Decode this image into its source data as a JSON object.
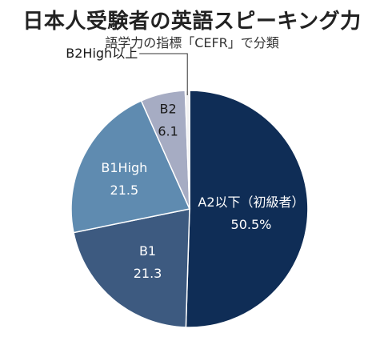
{
  "header": {
    "title": "日本人受験者の英語スピーキング力",
    "subtitle": "語学力の指標「CEFR」で分類"
  },
  "chart_data": {
    "type": "pie",
    "title": "日本人受験者の英語スピーキング力",
    "subtitle": "語学力の指標「CEFR」で分類",
    "start_angle": "top (12 o'clock)",
    "direction": "clockwise",
    "slices": [
      {
        "label": "A2以下（初級者）",
        "value": 50.5,
        "value_label": "50.5%",
        "color": "#0f2d56",
        "text_color": "#ffffff"
      },
      {
        "label": "B1",
        "value": 21.3,
        "value_label": "21.3",
        "color": "#3d5a80",
        "text_color": "#ffffff"
      },
      {
        "label": "B1High",
        "value": 21.5,
        "value_label": "21.5",
        "color": "#5f8bb0",
        "text_color": "#ffffff"
      },
      {
        "label": "B2",
        "value": 6.1,
        "value_label": "6.1",
        "color": "#a6acc3",
        "text_color": "#1a1a1a"
      },
      {
        "label": "B2High以上",
        "value": 0.6,
        "value_label": "",
        "color": "#f2f2f2",
        "text_color": "#1a1a1a"
      }
    ]
  }
}
